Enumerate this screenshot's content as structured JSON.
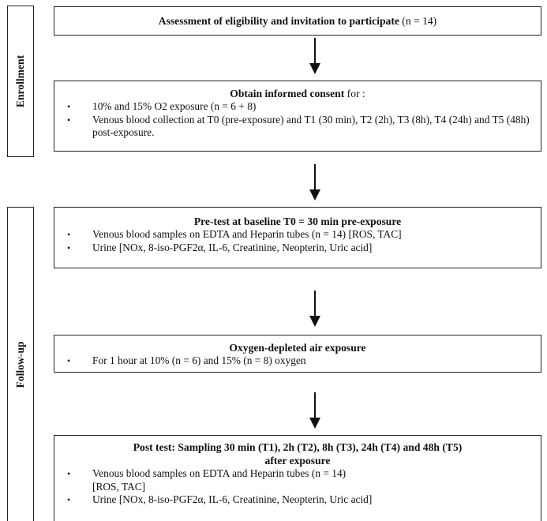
{
  "sections": {
    "enrollment": "Enrollment",
    "follow_up": "Follow-up"
  },
  "box1": {
    "title_bold": "Assessment of eligibility and invitation to participate",
    "title_rest": " (n = 14)"
  },
  "box2": {
    "title_bold": "Obtain informed consent",
    "title_rest": " for :",
    "items": [
      "10% and 15% O2 exposure (n = 6 + 8)",
      "Venous blood collection at T0 (pre-exposure) and T1 (30 min), T2 (2h), T3 (8h), T4 (24h) and T5 (48h) post-exposure."
    ]
  },
  "box3": {
    "title_bold": "Pre-test at baseline T0 = 30 min pre-exposure",
    "items": [
      "Venous blood samples on EDTA and Heparin tubes (n = 14) [ROS, TAC]",
      "Urine [NOx, 8-iso-PGF2α, IL-6, Creatinine, Neopterin, Uric acid]"
    ]
  },
  "box4": {
    "title_bold": "Oxygen-depleted air exposure",
    "items": [
      "For 1 hour at 10% (n = 6) and 15% (n = 8) oxygen"
    ]
  },
  "box5": {
    "title_bold_line1": "Post test: Sampling 30 min (T1), 2h (T2), 8h (T3), 24h (T4) and 48h (T5)",
    "title_bold_line2": "after exposure",
    "items": [
      "Venous blood samples on EDTA and Heparin tubes (n = 14)",
      "[ROS, TAC]",
      "Urine [NOx, 8-iso-PGF2α, IL-6, Creatinine, Neopterin, Uric acid]"
    ]
  }
}
